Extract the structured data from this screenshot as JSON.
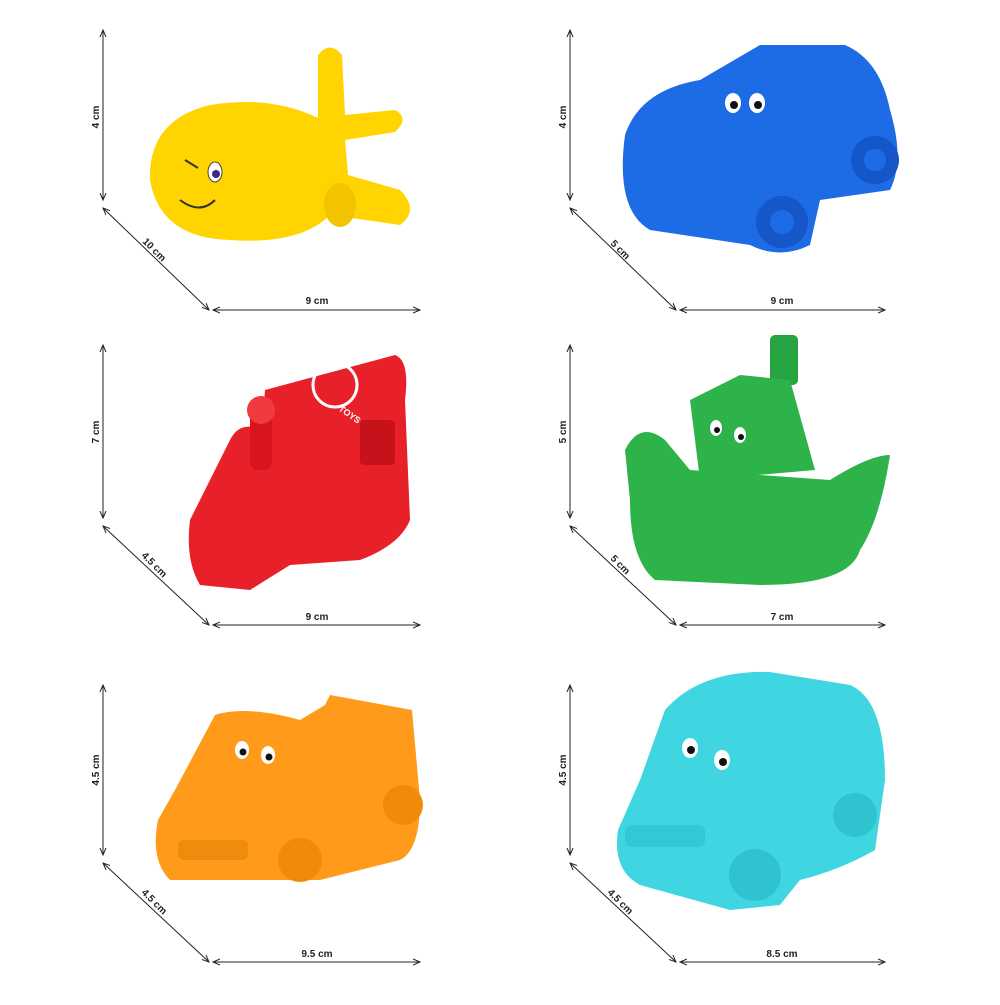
{
  "toys": [
    {
      "name": "airplane",
      "color": "#FFD400",
      "height": "4 cm",
      "depth": "10 cm",
      "width": "9 cm"
    },
    {
      "name": "car",
      "color": "#1E6BE6",
      "height": "4 cm",
      "depth": "5 cm",
      "width": "9 cm"
    },
    {
      "name": "train",
      "color": "#E8202A",
      "height": "7 cm",
      "depth": "4.5 cm",
      "width": "9 cm",
      "logo_text": "TOYS"
    },
    {
      "name": "boat",
      "color": "#2DB34A",
      "height": "5 cm",
      "depth": "5 cm",
      "width": "7 cm"
    },
    {
      "name": "pickup-truck",
      "color": "#FF9A1A",
      "height": "4.5 cm",
      "depth": "4.5 cm",
      "width": "9.5 cm"
    },
    {
      "name": "bus",
      "color": "#3FD6E2",
      "height": "4.5 cm",
      "depth": "4.5 cm",
      "width": "8.5 cm"
    }
  ]
}
